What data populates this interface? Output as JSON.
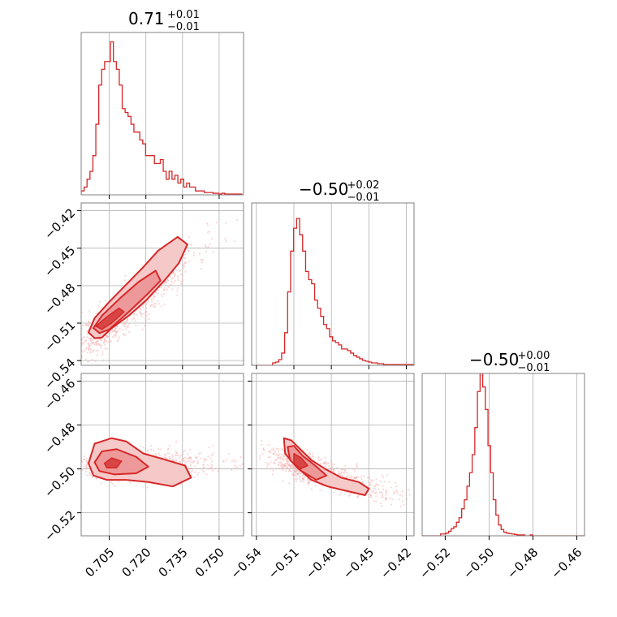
{
  "chart_data": {
    "type": "corner",
    "style": {
      "color": "#d62728",
      "fill_light": "#f6c9c9",
      "fill_mid": "#ee9999",
      "fill_dark": "#d84545",
      "grid": true
    },
    "panels": [
      {
        "id": "p00",
        "kind": "hist1d",
        "row": 0,
        "col": 0,
        "title": {
          "main": "0.71",
          "sup": "+0.01",
          "sub": "−0.01"
        },
        "xlim": [
          0.6935,
          0.76
        ],
        "ylim": [
          0,
          20.7
        ],
        "x_grid": [
          0.705,
          0.72,
          0.735,
          0.75
        ],
        "bins": {
          "start": 0.6935,
          "width": 0.0012,
          "counts": [
            0.5,
            1,
            2,
            3,
            5,
            9,
            14,
            16,
            17,
            17,
            19.5,
            17,
            16,
            14,
            11,
            10.5,
            10,
            9,
            8,
            8,
            7,
            6.5,
            5,
            5,
            5,
            4,
            4,
            4.5,
            3,
            2,
            3,
            2,
            2.5,
            1.5,
            2,
            1,
            1.5,
            1,
            1,
            0.5,
            0.5,
            0.5,
            0.3,
            0.3,
            0.3,
            0.2,
            0.2,
            0.1,
            0.2,
            0.1,
            0.1,
            0.1,
            0.1,
            0.1,
            0.1
          ]
        }
      },
      {
        "id": "p11",
        "kind": "hist1d",
        "row": 1,
        "col": 1,
        "title": {
          "main": "−0.50",
          "sup": "+0.02",
          "sub": "−0.01"
        },
        "xlim": [
          -0.5438,
          -0.4138
        ],
        "ylim": [
          0,
          19.9
        ],
        "x_grid": [
          -0.54,
          -0.51,
          -0.48,
          -0.45,
          -0.42
        ],
        "bins": {
          "start": -0.5438,
          "width": 0.0024,
          "counts": [
            0,
            0,
            0,
            0,
            0,
            0,
            0,
            0.3,
            0.4,
            0.7,
            1.5,
            4,
            9,
            14,
            16.8,
            18,
            16,
            14,
            11.5,
            10.5,
            10,
            8,
            7,
            6,
            5,
            4.5,
            3.5,
            3,
            2.8,
            2.5,
            2,
            2,
            1.8,
            1.5,
            1.2,
            1,
            0.8,
            0.6,
            0.5,
            0.4,
            0.3,
            0.3,
            0.2,
            0.2,
            0.1,
            0.1,
            0.1,
            0.1,
            0.1,
            0.1,
            0.1,
            0.1,
            0.1,
            0.1
          ]
        }
      },
      {
        "id": "p22",
        "kind": "hist1d",
        "row": 2,
        "col": 2,
        "title": {
          "main": "−0.50",
          "sup": "+0.00",
          "sub": "−0.01"
        },
        "xlim": [
          -0.5305,
          -0.4565
        ],
        "ylim": [
          0,
          18
        ],
        "x_grid": [
          -0.52,
          -0.5,
          -0.48,
          -0.46
        ],
        "bins": {
          "start": -0.5305,
          "width": 0.0012,
          "counts": [
            0,
            0,
            0,
            0,
            0,
            0,
            0,
            0.2,
            0.2,
            0.3,
            0.5,
            0.8,
            1,
            1.5,
            2,
            3,
            4,
            5.5,
            7,
            9,
            12,
            16,
            18,
            16.5,
            14,
            10,
            7,
            4,
            2.3,
            1.2,
            0.7,
            0.4,
            0.3,
            0.25,
            0.2,
            0.15,
            0.1,
            0.1,
            0.1,
            0,
            0,
            0.1,
            0,
            0,
            0,
            0,
            0,
            0,
            0,
            0,
            0,
            0,
            0,
            0,
            0,
            0,
            0,
            0,
            0,
            0,
            0,
            0
          ]
        }
      },
      {
        "id": "p10",
        "kind": "hist2d",
        "row": 1,
        "col": 0,
        "xlim": [
          0.6935,
          0.76
        ],
        "ylim": [
          -0.5438,
          -0.4138
        ],
        "x_grid": [
          0.705,
          0.72,
          0.735,
          0.75
        ],
        "y_grid": [
          -0.54,
          -0.51,
          -0.48,
          -0.45,
          -0.42
        ],
        "scatter": {
          "center": [
            0.708,
            -0.505
          ],
          "spread": [
            0.01,
            0.016
          ],
          "slope": 1.55,
          "count": 900,
          "seed": 11
        },
        "contours": [
          [
            [
              0.6965,
              -0.5175
            ],
            [
              0.699,
              -0.522
            ],
            [
              0.702,
              -0.5215
            ],
            [
              0.706,
              -0.514
            ],
            [
              0.713,
              -0.504
            ],
            [
              0.72,
              -0.492
            ],
            [
              0.728,
              -0.475
            ],
            [
              0.7335,
              -0.462
            ],
            [
              0.737,
              -0.447
            ],
            [
              0.733,
              -0.441
            ],
            [
              0.725,
              -0.452
            ],
            [
              0.719,
              -0.465
            ],
            [
              0.712,
              -0.479
            ],
            [
              0.705,
              -0.493
            ],
            [
              0.699,
              -0.506
            ]
          ],
          [
            [
              0.6985,
              -0.514
            ],
            [
              0.701,
              -0.518
            ],
            [
              0.705,
              -0.515
            ],
            [
              0.713,
              -0.501
            ],
            [
              0.72,
              -0.488
            ],
            [
              0.726,
              -0.476
            ],
            [
              0.724,
              -0.468
            ],
            [
              0.717,
              -0.477
            ],
            [
              0.71,
              -0.489
            ],
            [
              0.702,
              -0.504
            ]
          ],
          [
            [
              0.6995,
              -0.5125
            ],
            [
              0.702,
              -0.515
            ],
            [
              0.706,
              -0.51
            ],
            [
              0.711,
              -0.501
            ],
            [
              0.709,
              -0.498
            ],
            [
              0.704,
              -0.505
            ]
          ]
        ],
        "y_ticklabels": [
          "−0.42",
          "−0.45",
          "−0.48",
          "−0.51",
          "−0.54"
        ],
        "y_ticks": [
          -0.42,
          -0.45,
          -0.48,
          -0.51,
          -0.54
        ]
      },
      {
        "id": "p20",
        "kind": "hist2d",
        "row": 2,
        "col": 0,
        "xlim": [
          0.6935,
          0.76
        ],
        "ylim": [
          -0.5305,
          -0.4565
        ],
        "x_grid": [
          0.705,
          0.72,
          0.735,
          0.75
        ],
        "y_grid": [
          -0.52,
          -0.5,
          -0.48,
          -0.46
        ],
        "scatter": {
          "center": [
            0.712,
            -0.498
          ],
          "spread": [
            0.012,
            0.006
          ],
          "slope": 0.0,
          "count": 800,
          "seed": 23
        },
        "contours": [
          [
            [
              0.6965,
              -0.4975
            ],
            [
              0.699,
              -0.4885
            ],
            [
              0.706,
              -0.486
            ],
            [
              0.712,
              -0.4875
            ],
            [
              0.719,
              -0.493
            ],
            [
              0.727,
              -0.4955
            ],
            [
              0.736,
              -0.4985
            ],
            [
              0.7385,
              -0.504
            ],
            [
              0.731,
              -0.508
            ],
            [
              0.721,
              -0.506
            ],
            [
              0.712,
              -0.505
            ],
            [
              0.704,
              -0.505
            ],
            [
              0.6985,
              -0.503
            ]
          ],
          [
            [
              0.699,
              -0.497
            ],
            [
              0.702,
              -0.492
            ],
            [
              0.708,
              -0.491
            ],
            [
              0.716,
              -0.4945
            ],
            [
              0.721,
              -0.499
            ],
            [
              0.716,
              -0.502
            ],
            [
              0.707,
              -0.5025
            ],
            [
              0.701,
              -0.501
            ]
          ],
          [
            [
              0.703,
              -0.4975
            ],
            [
              0.706,
              -0.495
            ],
            [
              0.71,
              -0.4965
            ],
            [
              0.708,
              -0.4995
            ],
            [
              0.704,
              -0.4995
            ]
          ]
        ],
        "y_ticklabels": [
          "−0.46",
          "−0.48",
          "−0.50",
          "−0.52"
        ],
        "y_ticks": [
          -0.46,
          -0.48,
          -0.5,
          -0.52
        ],
        "x_ticklabels": [
          "0.705",
          "0.720",
          "0.735",
          "0.750"
        ],
        "x_ticks": [
          0.705,
          0.72,
          0.735,
          0.75
        ]
      },
      {
        "id": "p21",
        "kind": "hist2d",
        "row": 2,
        "col": 1,
        "xlim": [
          -0.5438,
          -0.4138
        ],
        "ylim": [
          -0.5305,
          -0.4565
        ],
        "x_grid": [
          -0.54,
          -0.51,
          -0.48,
          -0.45,
          -0.42
        ],
        "y_grid": [
          -0.52,
          -0.5,
          -0.48,
          -0.46
        ],
        "scatter": {
          "center": [
            -0.496,
            -0.5
          ],
          "spread": [
            0.02,
            0.006
          ],
          "slope": -0.18,
          "count": 800,
          "seed": 37
        },
        "contours": [
          [
            [
              -0.518,
              -0.486
            ],
            [
              -0.512,
              -0.487
            ],
            [
              -0.505,
              -0.491
            ],
            [
              -0.496,
              -0.496
            ],
            [
              -0.485,
              -0.5
            ],
            [
              -0.472,
              -0.504
            ],
            [
              -0.458,
              -0.506
            ],
            [
              -0.45,
              -0.509
            ],
            [
              -0.453,
              -0.512
            ],
            [
              -0.468,
              -0.51
            ],
            [
              -0.483,
              -0.508
            ],
            [
              -0.496,
              -0.505
            ],
            [
              -0.508,
              -0.499
            ],
            [
              -0.517,
              -0.493
            ]
          ],
          [
            [
              -0.515,
              -0.49
            ],
            [
              -0.51,
              -0.4895
            ],
            [
              -0.503,
              -0.494
            ],
            [
              -0.493,
              -0.4985
            ],
            [
              -0.484,
              -0.503
            ],
            [
              -0.492,
              -0.505
            ],
            [
              -0.504,
              -0.501
            ],
            [
              -0.513,
              -0.496
            ]
          ],
          [
            [
              -0.51,
              -0.493
            ],
            [
              -0.504,
              -0.495
            ],
            [
              -0.499,
              -0.4985
            ],
            [
              -0.505,
              -0.5
            ],
            [
              -0.51,
              -0.4975
            ]
          ]
        ],
        "x_ticklabels": [
          "−0.54",
          "−0.51",
          "−0.48",
          "−0.45",
          "−0.42"
        ],
        "x_ticks": [
          -0.54,
          -0.51,
          -0.48,
          -0.45,
          -0.42
        ]
      }
    ],
    "bottom_ticks_p22": {
      "x_ticklabels": [
        "−0.52",
        "−0.50",
        "−0.48",
        "−0.46"
      ],
      "x_ticks": [
        -0.52,
        -0.5,
        -0.48,
        -0.46
      ]
    }
  }
}
